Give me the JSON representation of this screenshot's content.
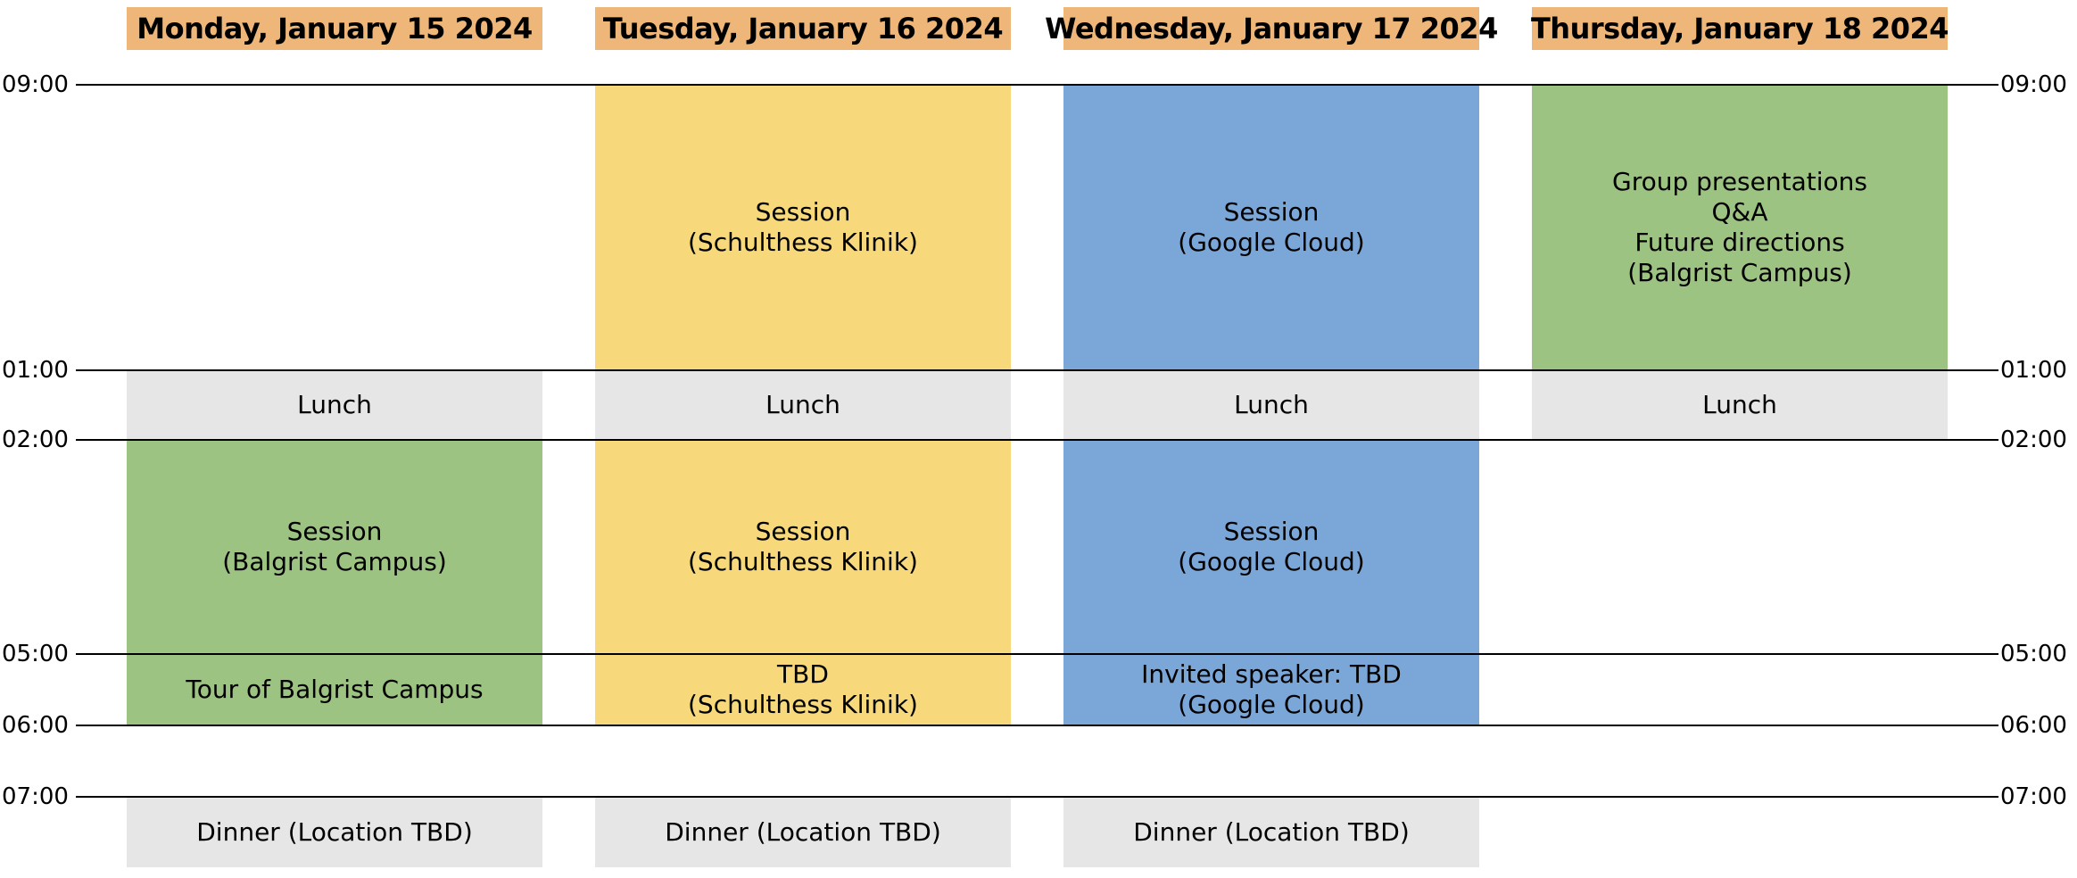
{
  "colors": {
    "header": "#eeb679",
    "lunch": "#e6e6e6",
    "dinner": "#e6e6e6",
    "balgrist": "#9dc383",
    "schulthess": "#f7d87b",
    "google": "#7ba6d8",
    "line": "#000000"
  },
  "days": [
    {
      "header": "Monday, January 15 2024",
      "events": [
        {
          "lines": [
            "Lunch"
          ],
          "color": "lunch"
        },
        {
          "lines": [
            "Session",
            "(Balgrist Campus)"
          ],
          "color": "balgrist"
        },
        {
          "lines": [
            "Tour of Balgrist Campus"
          ],
          "color": "balgrist"
        },
        {
          "lines": [
            "Dinner (Location TBD)"
          ],
          "color": "dinner"
        }
      ]
    },
    {
      "header": "Tuesday, January 16 2024",
      "events": [
        {
          "lines": [
            "Session",
            "(Schulthess Klinik)"
          ],
          "color": "schulthess"
        },
        {
          "lines": [
            "Lunch"
          ],
          "color": "lunch"
        },
        {
          "lines": [
            "Session",
            "(Schulthess Klinik)"
          ],
          "color": "schulthess"
        },
        {
          "lines": [
            "TBD",
            "(Schulthess Klinik)"
          ],
          "color": "schulthess"
        },
        {
          "lines": [
            "Dinner (Location TBD)"
          ],
          "color": "dinner"
        }
      ]
    },
    {
      "header": "Wednesday, January 17 2024",
      "events": [
        {
          "lines": [
            "Session",
            "(Google Cloud)"
          ],
          "color": "google"
        },
        {
          "lines": [
            "Lunch"
          ],
          "color": "lunch"
        },
        {
          "lines": [
            "Session",
            "(Google Cloud)"
          ],
          "color": "google"
        },
        {
          "lines": [
            "Invited speaker: TBD",
            "(Google Cloud)"
          ],
          "color": "google"
        },
        {
          "lines": [
            "Dinner (Location TBD)"
          ],
          "color": "dinner"
        }
      ]
    },
    {
      "header": "Thursday, January 18 2024",
      "events": [
        {
          "lines": [
            "Group presentations",
            "Q&A",
            "Future directions",
            "(Balgrist Campus)"
          ],
          "color": "balgrist"
        },
        {
          "lines": [
            "Lunch"
          ],
          "color": "lunch"
        }
      ]
    }
  ],
  "times": [
    "09:00",
    "01:00",
    "02:00",
    "05:00",
    "06:00",
    "07:00"
  ]
}
